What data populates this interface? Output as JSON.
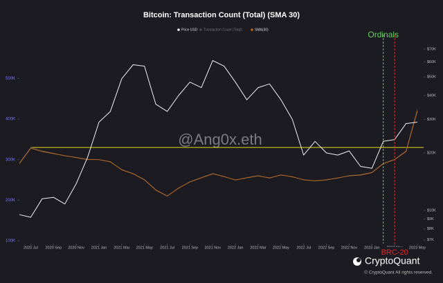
{
  "chart_data": {
    "type": "line",
    "title": "Bitcoin: Transaction Count (Total) (SMA 30)",
    "watermark": "@Ang0x.eth",
    "brand": "CryptoQuant",
    "copyright": "© CryptoQuant All rights reserved.",
    "x": [
      "2020-06",
      "2020-07",
      "2020-08",
      "2020-09",
      "2020-10",
      "2020-11",
      "2020-12",
      "2021-01",
      "2021-02",
      "2021-03",
      "2021-04",
      "2021-05",
      "2021-06",
      "2021-07",
      "2021-08",
      "2021-09",
      "2021-10",
      "2021-11",
      "2021-12",
      "2022-01",
      "2022-02",
      "2022-03",
      "2022-04",
      "2022-05",
      "2022-06",
      "2022-07",
      "2022-08",
      "2022-09",
      "2022-10",
      "2022-11",
      "2022-12",
      "2023-01",
      "2023-02",
      "2023-03",
      "2023-04",
      "2023-05"
    ],
    "xlim": [
      "2020-06",
      "2023-05"
    ],
    "xticks": [
      {
        "value": "2020-07",
        "label": "2020 Jul"
      },
      {
        "value": "2020-09",
        "label": "2020 Sep"
      },
      {
        "value": "2020-11",
        "label": "2020 Nov"
      },
      {
        "value": "2021-01",
        "label": "2021 Jan"
      },
      {
        "value": "2021-03",
        "label": "2021 Mar"
      },
      {
        "value": "2021-05",
        "label": "2021 May"
      },
      {
        "value": "2021-07",
        "label": "2021 Jul"
      },
      {
        "value": "2021-09",
        "label": "2021 Sep"
      },
      {
        "value": "2021-11",
        "label": "2021 Nov"
      },
      {
        "value": "2022-01",
        "label": "2022 Jan"
      },
      {
        "value": "2022-03",
        "label": "2022 Mar"
      },
      {
        "value": "2022-05",
        "label": "2022 May"
      },
      {
        "value": "2022-07",
        "label": "2022 Jul"
      },
      {
        "value": "2022-09",
        "label": "2022 Sep"
      },
      {
        "value": "2022-11",
        "label": "2022 Nov"
      },
      {
        "value": "2023-01",
        "label": "2023 Jan"
      },
      {
        "value": "2023-03",
        "label": "2023 Mar"
      },
      {
        "value": "2023-05",
        "label": "2023 May"
      }
    ],
    "ylim": [
      93000,
      600000
    ],
    "yticks": [
      {
        "value": 100000,
        "label": "100K"
      },
      {
        "value": 200000,
        "label": "200K"
      },
      {
        "value": 300000,
        "label": "300K"
      },
      {
        "value": 400000,
        "label": "400K"
      },
      {
        "value": 500000,
        "label": "500K"
      }
    ],
    "y2lim": [
      6700,
      80000
    ],
    "y2log": true,
    "y2ticks": [
      {
        "value": 7000,
        "label": "$7K"
      },
      {
        "value": 8000,
        "label": "$8K"
      },
      {
        "value": 9000,
        "label": "$9K"
      },
      {
        "value": 10000,
        "label": "$10K"
      },
      {
        "value": 20000,
        "label": "$20K"
      },
      {
        "value": 30000,
        "label": "$30K"
      },
      {
        "value": 40000,
        "label": "$40K"
      },
      {
        "value": 50000,
        "label": "$50K"
      },
      {
        "value": 60000,
        "label": "$60K"
      },
      {
        "value": 70000,
        "label": "$70K"
      }
    ],
    "grid": false,
    "series": [
      {
        "name": "Price USD",
        "color": "#f2f2f2",
        "axis": "y2",
        "values": [
          9500,
          9200,
          11500,
          11700,
          10800,
          13800,
          19000,
          29000,
          33000,
          49000,
          58000,
          57000,
          36000,
          33000,
          40000,
          47000,
          44000,
          61000,
          57000,
          47000,
          38000,
          44000,
          46000,
          38000,
          30000,
          19500,
          23000,
          20000,
          19500,
          20500,
          17000,
          16600,
          23000,
          23500,
          28500,
          29000
        ]
      },
      {
        "name": "Transaction Count (Total)",
        "color": "#4a4a52",
        "values": [
          292000,
          330000,
          322000,
          316000,
          309000,
          306000,
          301000,
          300000,
          294000,
          276000,
          266000,
          251000,
          226000,
          211000,
          229000,
          246000,
          256000,
          266000,
          259000,
          249000,
          256000,
          261000,
          254000,
          263000,
          257000,
          251000,
          247000,
          251000,
          254000,
          261000,
          263000,
          269000,
          291000,
          301000,
          322000,
          425000
        ]
      },
      {
        "name": "SMA(30)",
        "color": "#c26a1a",
        "values": [
          290000,
          328000,
          320000,
          315000,
          310000,
          305000,
          300000,
          300000,
          295000,
          275000,
          265000,
          250000,
          225000,
          210000,
          230000,
          245000,
          255000,
          265000,
          258000,
          250000,
          255000,
          260000,
          255000,
          262000,
          258000,
          250000,
          248000,
          250000,
          255000,
          260000,
          262000,
          268000,
          290000,
          300000,
          320000,
          420000
        ]
      }
    ],
    "reference_line": {
      "value": 330000,
      "color": "#e8d81a"
    },
    "events": [
      {
        "label": "Ordinals",
        "x": "2023-02",
        "color": "#5fd35a"
      },
      {
        "label": "BRC-20",
        "x": "2023-03",
        "color": "#e02b2b"
      }
    ]
  }
}
